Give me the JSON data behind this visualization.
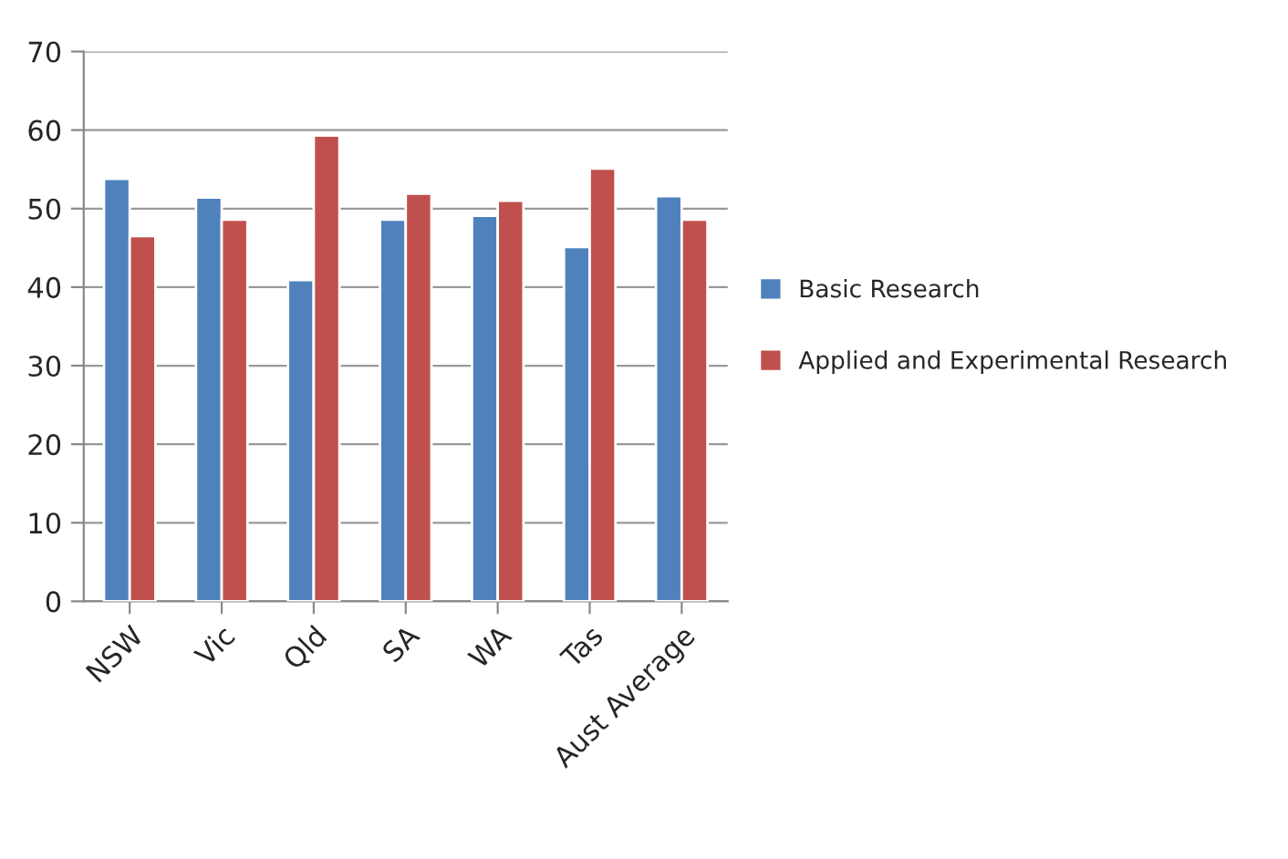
{
  "chart_data": {
    "type": "bar",
    "categories": [
      "NSW",
      "Vic",
      "Qld",
      "SA",
      "WA",
      "Tas",
      "Aust Average"
    ],
    "series": [
      {
        "name": "Basic Research",
        "color": "#4f81bd",
        "values": [
          53.8,
          51.4,
          40.9,
          48.6,
          49.1,
          45.1,
          51.6
        ]
      },
      {
        "name": "Applied and Experimental Research",
        "color": "#c0504d",
        "values": [
          46.5,
          48.6,
          59.3,
          51.9,
          51.0,
          55.1,
          48.6
        ]
      }
    ],
    "ylim": [
      0,
      70
    ],
    "yticks": [
      0,
      10,
      20,
      30,
      40,
      50,
      60,
      70
    ],
    "grid": "y",
    "legend": "right"
  }
}
